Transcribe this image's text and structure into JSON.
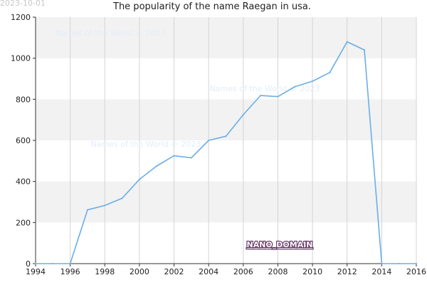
{
  "chart_data": {
    "type": "line",
    "title": "The popularity of the name Raegan in usa.",
    "date_stamp": "2023-10-01",
    "watermark": "Names of the World © 2023",
    "logo_text": "NANO_DOMAIN",
    "xlabel": "",
    "ylabel": "",
    "xlim": [
      1994,
      2016
    ],
    "ylim": [
      0,
      1200
    ],
    "x_ticks": [
      1994,
      1996,
      1998,
      2000,
      2002,
      2004,
      2006,
      2008,
      2010,
      2012,
      2014,
      2016
    ],
    "y_ticks": [
      0,
      200,
      400,
      600,
      800,
      1000,
      1200
    ],
    "grid": true,
    "series": [
      {
        "color": "#6aaee8",
        "x": [
          1994,
          1995,
          1996,
          1997,
          1998,
          1999,
          2000,
          2001,
          2002,
          2003,
          2004,
          2005,
          2006,
          2007,
          2008,
          2009,
          2010,
          2011,
          2012,
          2013,
          2014,
          2015,
          2016
        ],
        "y": [
          0,
          0,
          0,
          262,
          283,
          318,
          410,
          475,
          525,
          515,
          600,
          620,
          725,
          818,
          813,
          862,
          888,
          930,
          1080,
          1040,
          0,
          0,
          0
        ]
      }
    ]
  }
}
